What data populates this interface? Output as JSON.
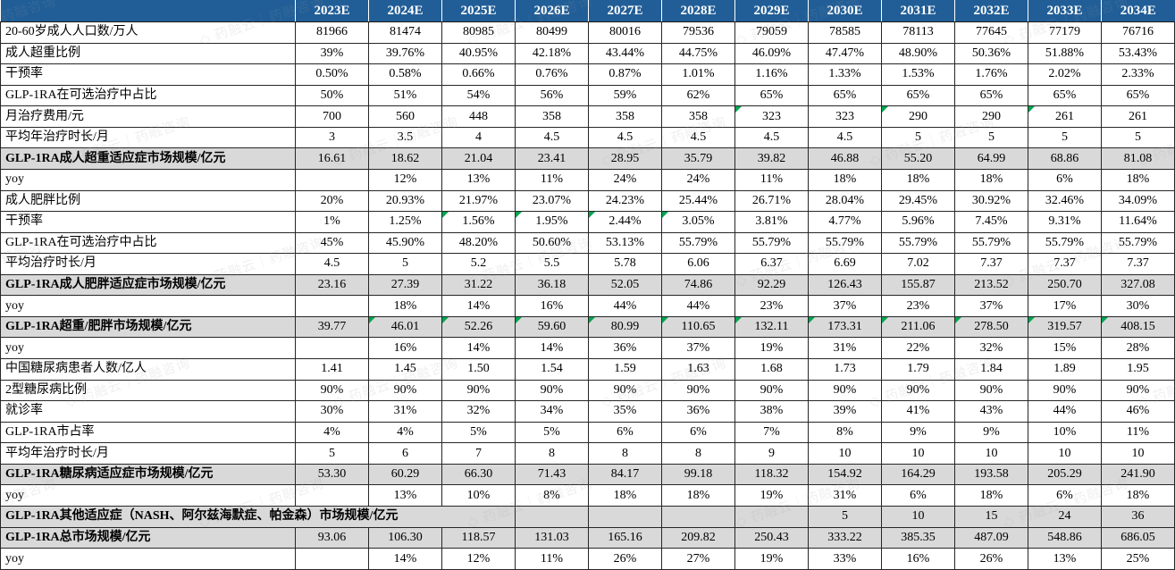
{
  "watermark": {
    "logo": "◇",
    "text": "药融云｜药融咨询"
  },
  "colors": {
    "header_bg": "#215E97",
    "highlight_bg": "#D9D9D9",
    "comment_triangle": "#00A550"
  },
  "table": {
    "columns": [
      "2023E",
      "2024E",
      "2025E",
      "2026E",
      "2027E",
      "2028E",
      "2029E",
      "2030E",
      "2031E",
      "2032E",
      "2033E",
      "2034E"
    ],
    "rows": [
      {
        "label": "20-60岁成人人口数/万人",
        "type": "normal",
        "values": [
          "81966",
          "81474",
          "80985",
          "80499",
          "80016",
          "79536",
          "79059",
          "78585",
          "78113",
          "77645",
          "77179",
          "76716"
        ]
      },
      {
        "label": "成人超重比例",
        "type": "normal",
        "values": [
          "39%",
          "39.76%",
          "40.95%",
          "42.18%",
          "43.44%",
          "44.75%",
          "46.09%",
          "47.47%",
          "48.90%",
          "50.36%",
          "51.88%",
          "53.43%"
        ]
      },
      {
        "label": "干预率",
        "type": "normal",
        "values": [
          "0.50%",
          "0.58%",
          "0.66%",
          "0.76%",
          "0.87%",
          "1.01%",
          "1.16%",
          "1.33%",
          "1.53%",
          "1.76%",
          "2.02%",
          "2.33%"
        ]
      },
      {
        "label": "GLP-1RA在可选治疗中占比",
        "type": "normal",
        "values": [
          "50%",
          "51%",
          "54%",
          "56%",
          "59%",
          "62%",
          "65%",
          "65%",
          "65%",
          "65%",
          "65%",
          "65%"
        ]
      },
      {
        "label": "月治疗费用/元",
        "type": "normal",
        "values": [
          "700",
          "560",
          "448",
          "358",
          "358",
          "358",
          "323",
          "323",
          "290",
          "290",
          "261",
          "261"
        ],
        "triangles": [
          6,
          8,
          10
        ]
      },
      {
        "label": "平均年治疗时长/月",
        "type": "normal",
        "values": [
          "3",
          "3.5",
          "4",
          "4.5",
          "4.5",
          "4.5",
          "4.5",
          "4.5",
          "5",
          "5",
          "5",
          "5"
        ]
      },
      {
        "label": "GLP-1RA成人超重适应症市场规模/亿元",
        "type": "highlight",
        "values": [
          "16.61",
          "18.62",
          "21.04",
          "23.41",
          "28.95",
          "35.79",
          "39.82",
          "46.88",
          "55.20",
          "64.99",
          "68.86",
          "81.08"
        ]
      },
      {
        "label": "yoy",
        "type": "normal",
        "values": [
          "",
          "12%",
          "13%",
          "11%",
          "24%",
          "24%",
          "11%",
          "18%",
          "18%",
          "18%",
          "6%",
          "18%"
        ]
      },
      {
        "label": "成人肥胖比例",
        "type": "normal",
        "values": [
          "20%",
          "20.93%",
          "21.97%",
          "23.07%",
          "24.23%",
          "25.44%",
          "26.71%",
          "28.04%",
          "29.45%",
          "30.92%",
          "32.46%",
          "34.09%"
        ]
      },
      {
        "label": "干预率",
        "type": "normal",
        "values": [
          "1%",
          "1.25%",
          "1.56%",
          "1.95%",
          "2.44%",
          "3.05%",
          "3.81%",
          "4.77%",
          "5.96%",
          "7.45%",
          "9.31%",
          "11.64%"
        ],
        "triangles": [
          2,
          3,
          4,
          5
        ]
      },
      {
        "label": "GLP-1RA在可选治疗中占比",
        "type": "normal",
        "values": [
          "45%",
          "45.90%",
          "48.20%",
          "50.60%",
          "53.13%",
          "55.79%",
          "55.79%",
          "55.79%",
          "55.79%",
          "55.79%",
          "55.79%",
          "55.79%"
        ]
      },
      {
        "label": "平均治疗时长/月",
        "type": "normal",
        "values": [
          "4.5",
          "5",
          "5.2",
          "5.5",
          "5.78",
          "6.06",
          "6.37",
          "6.69",
          "7.02",
          "7.37",
          "7.37",
          "7.37"
        ]
      },
      {
        "label": "GLP-1RA成人肥胖适应症市场规模/亿元",
        "type": "highlight",
        "values": [
          "23.16",
          "27.39",
          "31.22",
          "36.18",
          "52.05",
          "74.86",
          "92.29",
          "126.43",
          "155.87",
          "213.52",
          "250.70",
          "327.08"
        ]
      },
      {
        "label": "yoy",
        "type": "normal",
        "values": [
          "",
          "18%",
          "14%",
          "16%",
          "44%",
          "44%",
          "23%",
          "37%",
          "23%",
          "37%",
          "17%",
          "30%"
        ]
      },
      {
        "label": "GLP-1RA超重/肥胖市场规模/亿元",
        "type": "highlight",
        "values": [
          "39.77",
          "46.01",
          "52.26",
          "59.60",
          "80.99",
          "110.65",
          "132.11",
          "173.31",
          "211.06",
          "278.50",
          "319.57",
          "408.15"
        ],
        "triangles": [
          1,
          2,
          3,
          4,
          5,
          6,
          7,
          8,
          9,
          10,
          11
        ]
      },
      {
        "label": "yoy",
        "type": "normal",
        "values": [
          "",
          "16%",
          "14%",
          "14%",
          "36%",
          "37%",
          "19%",
          "31%",
          "22%",
          "32%",
          "15%",
          "28%"
        ]
      },
      {
        "label": "中国糖尿病患者人数/亿人",
        "type": "normal",
        "values": [
          "1.41",
          "1.45",
          "1.50",
          "1.54",
          "1.59",
          "1.63",
          "1.68",
          "1.73",
          "1.79",
          "1.84",
          "1.89",
          "1.95"
        ]
      },
      {
        "label": "2型糖尿病比例",
        "type": "normal",
        "values": [
          "90%",
          "90%",
          "90%",
          "90%",
          "90%",
          "90%",
          "90%",
          "90%",
          "90%",
          "90%",
          "90%",
          "90%"
        ]
      },
      {
        "label": "就诊率",
        "type": "normal",
        "values": [
          "30%",
          "31%",
          "32%",
          "34%",
          "35%",
          "36%",
          "38%",
          "39%",
          "41%",
          "43%",
          "44%",
          "46%"
        ]
      },
      {
        "label": "GLP-1RA市占率",
        "type": "normal",
        "values": [
          "4%",
          "4%",
          "5%",
          "5%",
          "6%",
          "6%",
          "7%",
          "8%",
          "9%",
          "9%",
          "10%",
          "11%"
        ]
      },
      {
        "label": "平均年治疗时长/月",
        "type": "normal",
        "values": [
          "5",
          "6",
          "7",
          "8",
          "8",
          "8",
          "9",
          "10",
          "10",
          "10",
          "10",
          "10"
        ]
      },
      {
        "label": "GLP-1RA糖尿病适应症市场规模/亿元",
        "type": "highlight",
        "values": [
          "53.30",
          "60.29",
          "66.30",
          "71.43",
          "84.17",
          "99.18",
          "118.32",
          "154.92",
          "164.29",
          "193.58",
          "205.29",
          "241.90"
        ]
      },
      {
        "label": "yoy",
        "type": "normal",
        "values": [
          "",
          "13%",
          "10%",
          "8%",
          "18%",
          "18%",
          "19%",
          "31%",
          "6%",
          "18%",
          "6%",
          "18%"
        ]
      },
      {
        "label": "GLP-1RA其他适应症（NASH、阿尔兹海默症、帕金森）市场规模/亿元",
        "type": "merged",
        "label_colspan": 4,
        "values": [
          "",
          "",
          "",
          "",
          "5",
          "10",
          "15",
          "24",
          "36"
        ]
      },
      {
        "label": "GLP-1RA总市场规模/亿元",
        "type": "highlight",
        "values": [
          "93.06",
          "106.30",
          "118.57",
          "131.03",
          "165.16",
          "209.82",
          "250.43",
          "333.22",
          "385.35",
          "487.09",
          "548.86",
          "686.05"
        ]
      },
      {
        "label": "yoy",
        "type": "normal",
        "values": [
          "",
          "14%",
          "12%",
          "11%",
          "26%",
          "27%",
          "19%",
          "33%",
          "16%",
          "26%",
          "13%",
          "25%"
        ]
      }
    ]
  }
}
